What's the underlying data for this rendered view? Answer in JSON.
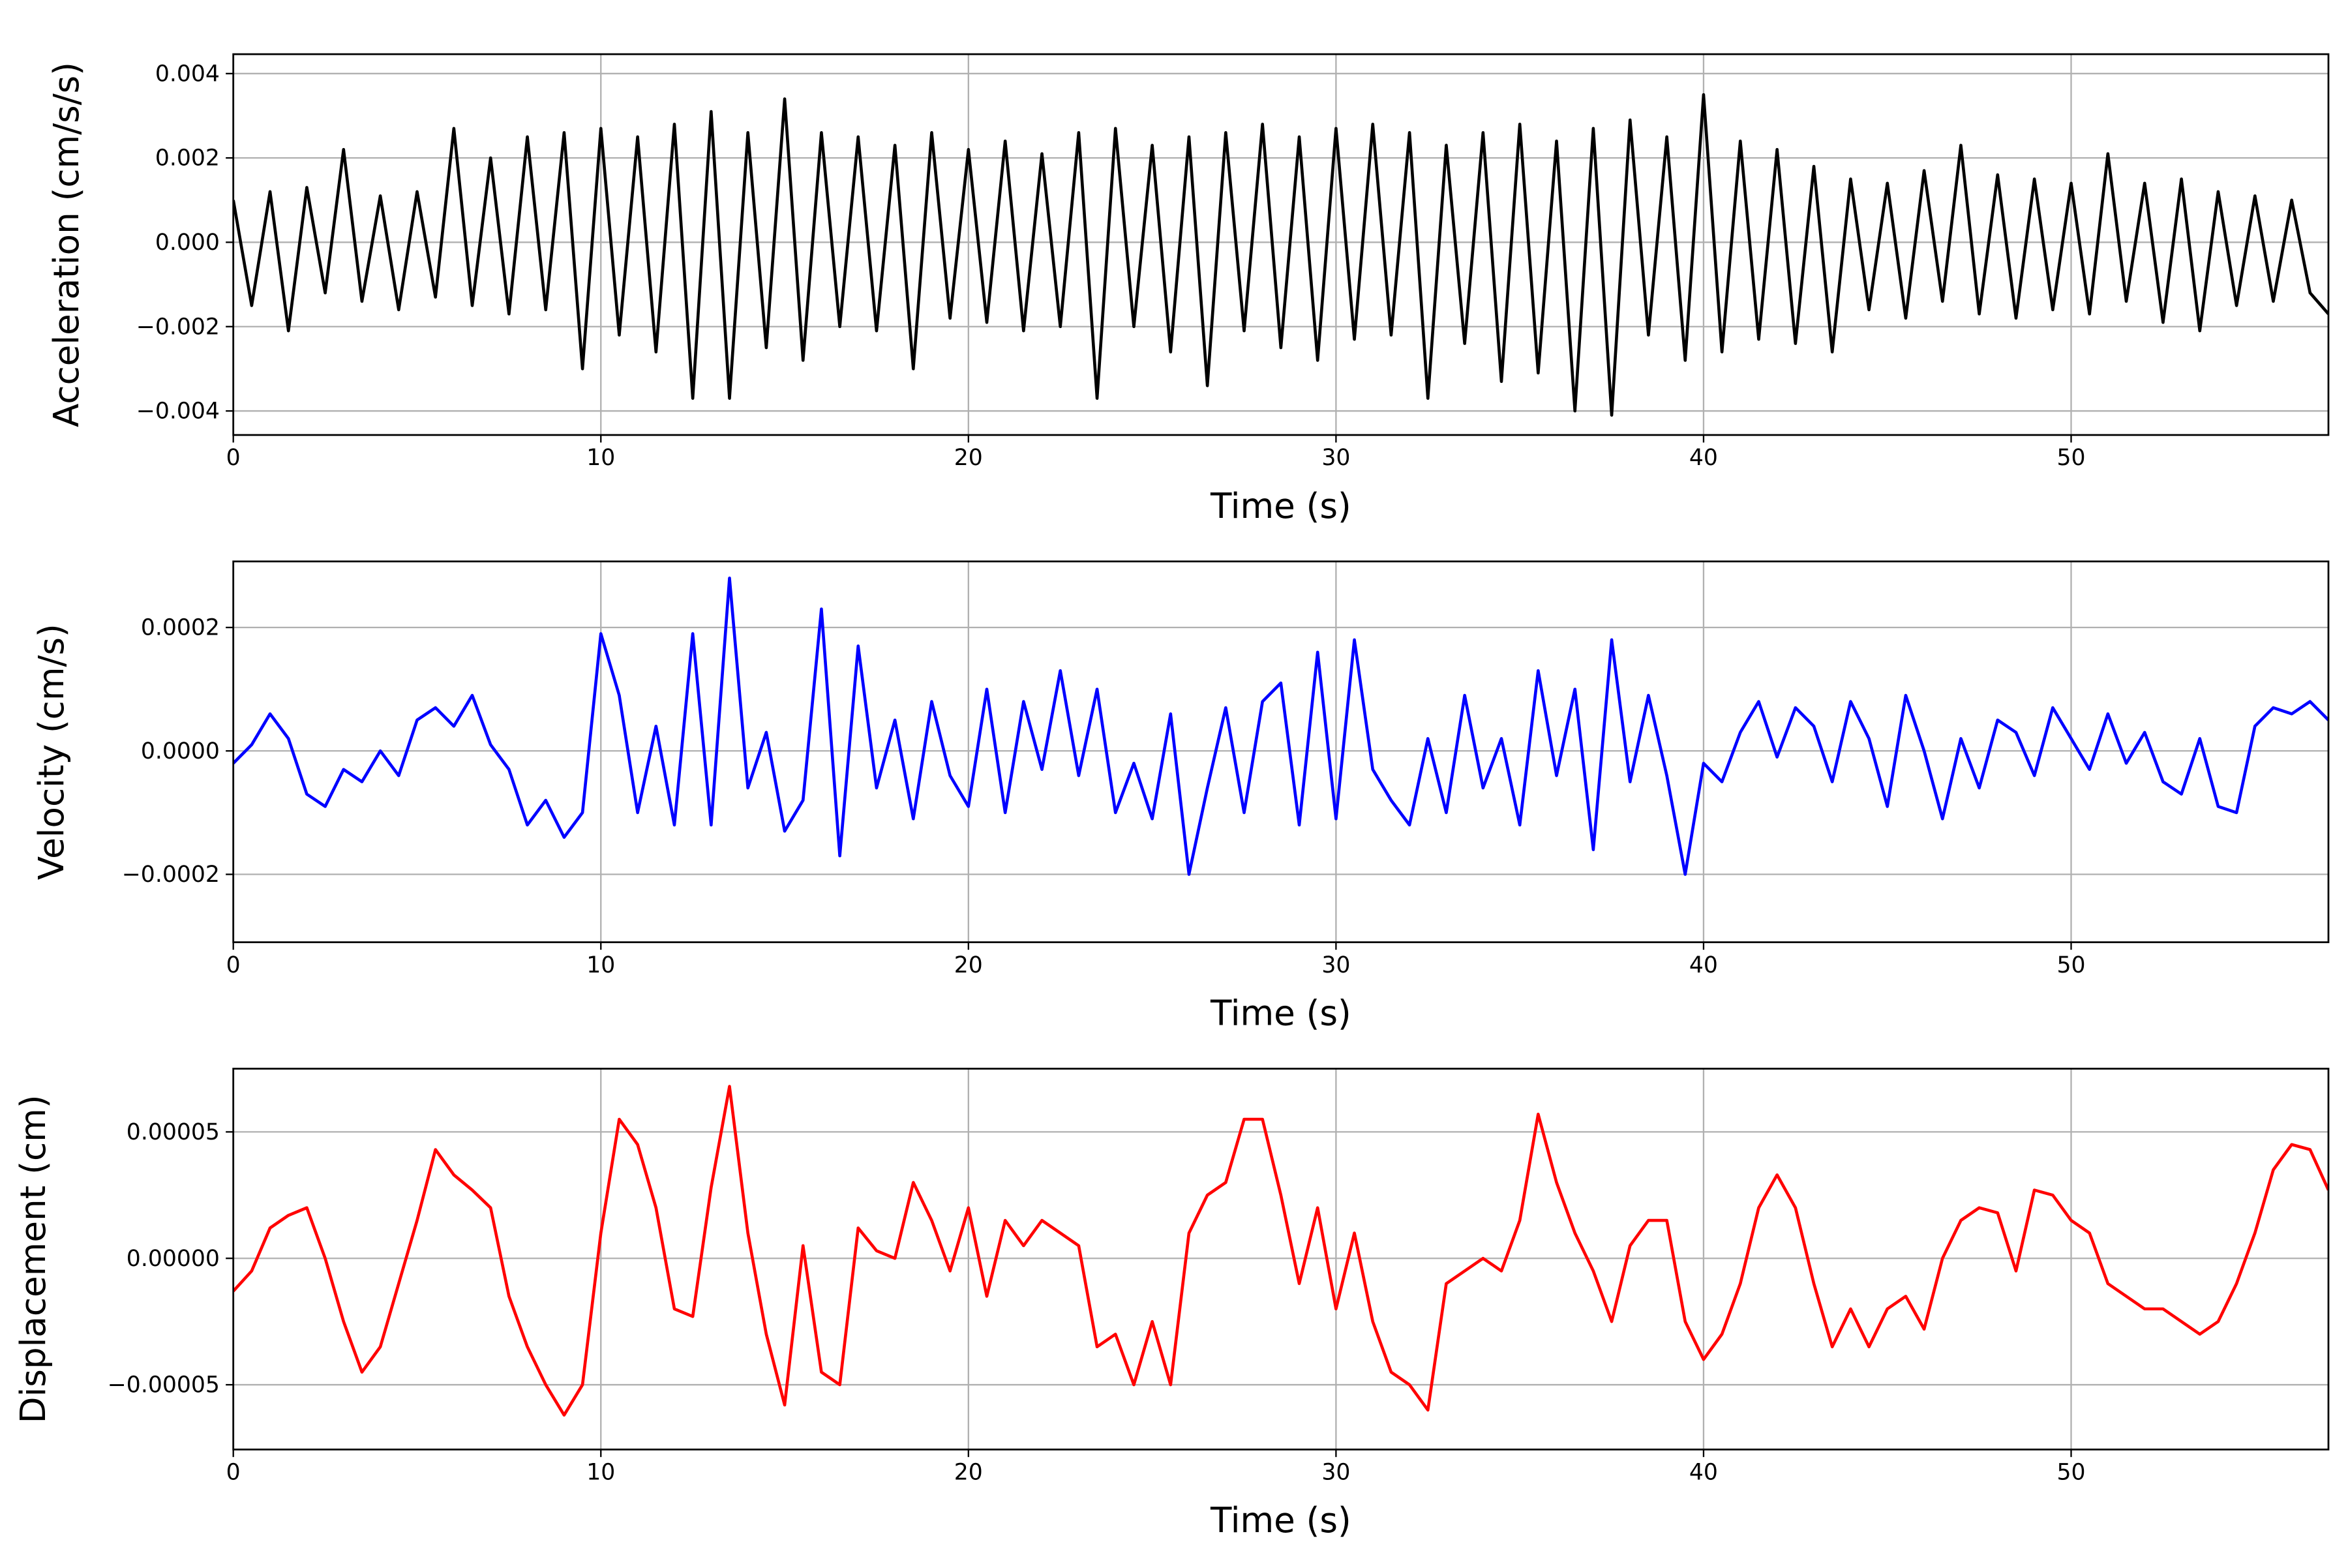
{
  "chart_data": [
    {
      "type": "line",
      "xlabel": "Time (s)",
      "ylabel": "Acceleration (cm/s/s)",
      "xlim": [
        0,
        57
      ],
      "xticks": [
        0,
        10,
        20,
        30,
        40,
        50
      ],
      "ylim": [
        -0.00457,
        0.00446
      ],
      "yticks": [
        {
          "value": -0.004,
          "label": "−0.004"
        },
        {
          "value": -0.002,
          "label": "−0.002"
        },
        {
          "value": 0,
          "label": "0.000"
        },
        {
          "value": 0.002,
          "label": "0.002"
        },
        {
          "value": 0.004,
          "label": "0.004"
        }
      ],
      "grid": true,
      "x": [
        0,
        0.5,
        1,
        1.5,
        2,
        2.5,
        3,
        3.5,
        4,
        4.5,
        5,
        5.5,
        6,
        6.5,
        7,
        7.5,
        8,
        8.5,
        9,
        9.5,
        10,
        10.5,
        11,
        11.5,
        12,
        12.5,
        13,
        13.5,
        14,
        14.5,
        15,
        15.5,
        16,
        16.5,
        17,
        17.5,
        18,
        18.5,
        19,
        19.5,
        20,
        20.5,
        21,
        21.5,
        22,
        22.5,
        23,
        23.5,
        24,
        24.5,
        25,
        25.5,
        26,
        26.5,
        27,
        27.5,
        28,
        28.5,
        29,
        29.5,
        30,
        30.5,
        31,
        31.5,
        32,
        32.5,
        33,
        33.5,
        34,
        34.5,
        35,
        35.5,
        36,
        36.5,
        37,
        37.5,
        38,
        38.5,
        39,
        39.5,
        40,
        40.5,
        41,
        41.5,
        42,
        42.5,
        43,
        43.5,
        44,
        44.5,
        45,
        45.5,
        46,
        46.5,
        47,
        47.5,
        48,
        48.5,
        49,
        49.5,
        50,
        50.5,
        51,
        51.5,
        52,
        52.5,
        53,
        53.5,
        54,
        54.5,
        55,
        55.5,
        56,
        56.5,
        57
      ],
      "series": [
        {
          "color": "#000000",
          "values": [
            0.001,
            -0.0015,
            0.0012,
            -0.0021,
            0.0013,
            -0.0012,
            0.0022,
            -0.0014,
            0.0011,
            -0.0016,
            0.0012,
            -0.0013,
            0.0027,
            -0.0015,
            0.002,
            -0.0017,
            0.0025,
            -0.0016,
            0.0026,
            -0.003,
            0.0027,
            -0.0022,
            0.0025,
            -0.0026,
            0.0028,
            -0.0037,
            0.0031,
            -0.0037,
            0.0026,
            -0.0025,
            0.0034,
            -0.0028,
            0.0026,
            -0.002,
            0.0025,
            -0.0021,
            0.0023,
            -0.003,
            0.0026,
            -0.0018,
            0.0022,
            -0.0019,
            0.0024,
            -0.0021,
            0.0021,
            -0.002,
            0.0026,
            -0.0037,
            0.0027,
            -0.002,
            0.0023,
            -0.0026,
            0.0025,
            -0.0034,
            0.0026,
            -0.0021,
            0.0028,
            -0.0025,
            0.0025,
            -0.0028,
            0.0027,
            -0.0023,
            0.0028,
            -0.0022,
            0.0026,
            -0.0037,
            0.0023,
            -0.0024,
            0.0026,
            -0.0033,
            0.0028,
            -0.0031,
            0.0024,
            -0.004,
            0.0027,
            -0.0041,
            0.0029,
            -0.0022,
            0.0025,
            -0.0028,
            0.0035,
            -0.0026,
            0.0024,
            -0.0023,
            0.0022,
            -0.0024,
            0.0018,
            -0.0026,
            0.0015,
            -0.0016,
            0.0014,
            -0.0018,
            0.0017,
            -0.0014,
            0.0023,
            -0.0017,
            0.0016,
            -0.0018,
            0.0015,
            -0.0016,
            0.0014,
            -0.0017,
            0.0021,
            -0.0014,
            0.0014,
            -0.0019,
            0.0015,
            -0.0021,
            0.0012,
            -0.0015,
            0.0011,
            -0.0014,
            0.001,
            -0.0012,
            -0.0017
          ]
        }
      ]
    },
    {
      "type": "line",
      "xlabel": "Time (s)",
      "ylabel": "Velocity (cm/s)",
      "xlim": [
        0,
        57
      ],
      "xticks": [
        0,
        10,
        20,
        30,
        40,
        50
      ],
      "ylim": [
        -0.00031,
        0.000307
      ],
      "yticks": [
        {
          "value": -0.0002,
          "label": "−0.0002"
        },
        {
          "value": 0,
          "label": "0.0000"
        },
        {
          "value": 0.0002,
          "label": "0.0002"
        }
      ],
      "grid": true,
      "x": [
        0,
        0.5,
        1,
        1.5,
        2,
        2.5,
        3,
        3.5,
        4,
        4.5,
        5,
        5.5,
        6,
        6.5,
        7,
        7.5,
        8,
        8.5,
        9,
        9.5,
        10,
        10.5,
        11,
        11.5,
        12,
        12.5,
        13,
        13.5,
        14,
        14.5,
        15,
        15.5,
        16,
        16.5,
        17,
        17.5,
        18,
        18.5,
        19,
        19.5,
        20,
        20.5,
        21,
        21.5,
        22,
        22.5,
        23,
        23.5,
        24,
        24.5,
        25,
        25.5,
        26,
        26.5,
        27,
        27.5,
        28,
        28.5,
        29,
        29.5,
        30,
        30.5,
        31,
        31.5,
        32,
        32.5,
        33,
        33.5,
        34,
        34.5,
        35,
        35.5,
        36,
        36.5,
        37,
        37.5,
        38,
        38.5,
        39,
        39.5,
        40,
        40.5,
        41,
        41.5,
        42,
        42.5,
        43,
        43.5,
        44,
        44.5,
        45,
        45.5,
        46,
        46.5,
        47,
        47.5,
        48,
        48.5,
        49,
        49.5,
        50,
        50.5,
        51,
        51.5,
        52,
        52.5,
        53,
        53.5,
        54,
        54.5,
        55,
        55.5,
        56,
        56.5,
        57
      ],
      "series": [
        {
          "color": "#0000ff",
          "values": [
            -2e-05,
            1e-05,
            6e-05,
            2e-05,
            -7e-05,
            -9e-05,
            -3e-05,
            -5e-05,
            0,
            -4e-05,
            5e-05,
            7e-05,
            4e-05,
            9e-05,
            1e-05,
            -3e-05,
            -0.00012,
            -8e-05,
            -0.00014,
            -0.0001,
            0.00019,
            9e-05,
            -0.0001,
            4e-05,
            -0.00012,
            0.00019,
            -0.00012,
            0.00028,
            -6e-05,
            3e-05,
            -0.00013,
            -8e-05,
            0.00023,
            -0.00017,
            0.00017,
            -6e-05,
            5e-05,
            -0.00011,
            8e-05,
            -4e-05,
            -9e-05,
            0.0001,
            -0.0001,
            8e-05,
            -3e-05,
            0.00013,
            -4e-05,
            0.0001,
            -0.0001,
            -2e-05,
            -0.00011,
            6e-05,
            -0.0002,
            -6e-05,
            7e-05,
            -0.0001,
            8e-05,
            0.00011,
            -0.00012,
            0.00016,
            -0.00011,
            0.00018,
            -3e-05,
            -8e-05,
            -0.00012,
            2e-05,
            -0.0001,
            9e-05,
            -6e-05,
            2e-05,
            -0.00012,
            0.00013,
            -4e-05,
            0.0001,
            -0.00016,
            0.00018,
            -5e-05,
            9e-05,
            -4e-05,
            -0.0002,
            -2e-05,
            -5e-05,
            3e-05,
            8e-05,
            -1e-05,
            7e-05,
            4e-05,
            -5e-05,
            8e-05,
            2e-05,
            -9e-05,
            9e-05,
            0,
            -0.00011,
            2e-05,
            -6e-05,
            5e-05,
            3e-05,
            -4e-05,
            7e-05,
            2e-05,
            -3e-05,
            6e-05,
            -2e-05,
            3e-05,
            -5e-05,
            -7e-05,
            2e-05,
            -9e-05,
            -0.0001,
            4e-05,
            7e-05,
            6e-05,
            8e-05,
            5e-05
          ]
        }
      ]
    },
    {
      "type": "line",
      "xlabel": "Time (s)",
      "ylabel": "Displacement (cm)",
      "xlim": [
        0,
        57
      ],
      "xticks": [
        0,
        10,
        20,
        30,
        40,
        50
      ],
      "ylim": [
        -7.56e-05,
        7.5e-05
      ],
      "yticks": [
        {
          "value": -5e-05,
          "label": "−0.00005"
        },
        {
          "value": 0,
          "label": "0.00000"
        },
        {
          "value": 5e-05,
          "label": "0.00005"
        }
      ],
      "grid": true,
      "x": [
        0,
        0.5,
        1,
        1.5,
        2,
        2.5,
        3,
        3.5,
        4,
        4.5,
        5,
        5.5,
        6,
        6.5,
        7,
        7.5,
        8,
        8.5,
        9,
        9.5,
        10,
        10.5,
        11,
        11.5,
        12,
        12.5,
        13,
        13.5,
        14,
        14.5,
        15,
        15.5,
        16,
        16.5,
        17,
        17.5,
        18,
        18.5,
        19,
        19.5,
        20,
        20.5,
        21,
        21.5,
        22,
        22.5,
        23,
        23.5,
        24,
        24.5,
        25,
        25.5,
        26,
        26.5,
        27,
        27.5,
        28,
        28.5,
        29,
        29.5,
        30,
        30.5,
        31,
        31.5,
        32,
        32.5,
        33,
        33.5,
        34,
        34.5,
        35,
        35.5,
        36,
        36.5,
        37,
        37.5,
        38,
        38.5,
        39,
        39.5,
        40,
        40.5,
        41,
        41.5,
        42,
        42.5,
        43,
        43.5,
        44,
        44.5,
        45,
        45.5,
        46,
        46.5,
        47,
        47.5,
        48,
        48.5,
        49,
        49.5,
        50,
        50.5,
        51,
        51.5,
        52,
        52.5,
        53,
        53.5,
        54,
        54.5,
        55,
        55.5,
        56,
        56.5,
        57
      ],
      "series": [
        {
          "color": "#ff0000",
          "values": [
            -1.3e-05,
            -5e-06,
            1.2e-05,
            1.7e-05,
            2e-05,
            0,
            -2.5e-05,
            -4.5e-05,
            -3.5e-05,
            -1e-05,
            1.5e-05,
            4.3e-05,
            3.3e-05,
            2.7e-05,
            2e-05,
            -1.5e-05,
            -3.5e-05,
            -5e-05,
            -6.2e-05,
            -5e-05,
            1e-05,
            5.5e-05,
            4.5e-05,
            2e-05,
            -2e-05,
            -2.3e-05,
            2.8e-05,
            6.8e-05,
            1e-05,
            -3e-05,
            -5.8e-05,
            5e-06,
            -4.5e-05,
            -5e-05,
            1.2e-05,
            3e-06,
            0,
            3e-05,
            1.5e-05,
            -5e-06,
            2e-05,
            -1.5e-05,
            1.5e-05,
            5e-06,
            1.5e-05,
            1e-05,
            5e-06,
            -3.5e-05,
            -3e-05,
            -5e-05,
            -2.5e-05,
            -5e-05,
            1e-05,
            2.5e-05,
            3e-05,
            5.5e-05,
            5.5e-05,
            2.5e-05,
            -1e-05,
            2e-05,
            -2e-05,
            1e-05,
            -2.5e-05,
            -4.5e-05,
            -5e-05,
            -6e-05,
            -1e-05,
            -5e-06,
            0,
            -5e-06,
            1.5e-05,
            5.7e-05,
            3e-05,
            1e-05,
            -5e-06,
            -2.5e-05,
            5e-06,
            1.5e-05,
            1.5e-05,
            -2.5e-05,
            -4e-05,
            -3e-05,
            -1e-05,
            2e-05,
            3.3e-05,
            2e-05,
            -1e-05,
            -3.5e-05,
            -2e-05,
            -3.5e-05,
            -2e-05,
            -1.5e-05,
            -2.8e-05,
            0,
            1.5e-05,
            2e-05,
            1.8e-05,
            -5e-06,
            2.7e-05,
            2.5e-05,
            1.5e-05,
            1e-05,
            -1e-05,
            -1.5e-05,
            -2e-05,
            -2e-05,
            -2.5e-05,
            -3e-05,
            -2.5e-05,
            -1e-05,
            1e-05,
            3.5e-05,
            4.5e-05,
            4.3e-05,
            2.7e-05
          ]
        }
      ]
    }
  ]
}
